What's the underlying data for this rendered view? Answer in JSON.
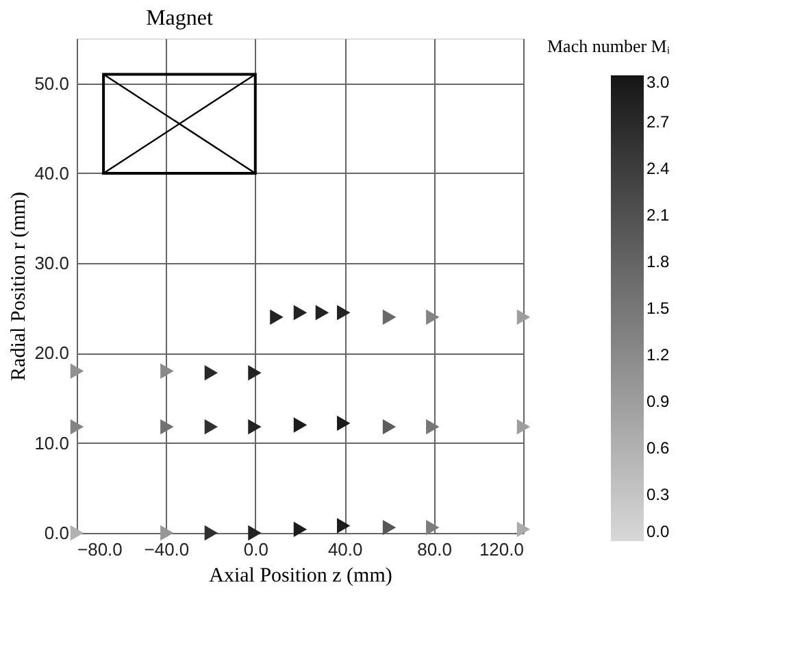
{
  "chart_data": {
    "type": "scatter",
    "xlabel": "Axial Position   z (mm)",
    "ylabel": "Radial Position   r (mm)",
    "clabel": "Mach number Mᵢ",
    "annotations": [
      "Magnet"
    ],
    "series": [
      {
        "x": [
          9.4,
          20,
          29.8,
          39.4,
          59.9,
          79.3,
          120
        ],
        "values": [
          24,
          24.5,
          24.5,
          24.5,
          24,
          24,
          24
        ],
        "cvalues": [
          2.8,
          2.8,
          2.8,
          2.8,
          1.7,
          1.3,
          0.9
        ],
        "colors": [
          "#232323",
          "#232323",
          "#232323",
          "#232323",
          "#6a6a6a",
          "#848484",
          "#9e9e9e"
        ]
      },
      {
        "x": [
          -80,
          -39.7,
          -19.9,
          -0.4
        ],
        "values": [
          18,
          18,
          17.8,
          17.8
        ],
        "cvalues": [
          1.1,
          1.2,
          2.7,
          2.8
        ],
        "colors": [
          "#919191",
          "#8a8a8a",
          "#292929",
          "#232323"
        ]
      },
      {
        "x": [
          -80,
          -39.7,
          -19.9,
          -0.4,
          20,
          39.4,
          59.9,
          79.3,
          120
        ],
        "values": [
          11.8,
          11.8,
          11.8,
          11.8,
          12,
          12.2,
          11.8,
          11.8,
          11.8
        ],
        "cvalues": [
          1.3,
          1.6,
          2.6,
          2.8,
          2.9,
          2.9,
          1.9,
          1.5,
          0.9
        ],
        "colors": [
          "#848484",
          "#717171",
          "#303030",
          "#232323",
          "#1c1c1c",
          "#1c1c1c",
          "#5d5d5d",
          "#777777",
          "#9e9e9e"
        ]
      },
      {
        "x": [
          -80,
          -39.7,
          -19.9,
          -0.4,
          20,
          39.4,
          59.9,
          79.3,
          120
        ],
        "values": [
          0,
          0,
          0,
          0,
          0.4,
          0.8,
          0.6,
          0.6,
          0.4
        ],
        "cvalues": [
          0.6,
          1.0,
          2.6,
          2.8,
          2.9,
          2.9,
          2.0,
          1.4,
          0.7
        ],
        "colors": [
          "#b1b1b1",
          "#979797",
          "#303030",
          "#232323",
          "#1c1c1c",
          "#1c1c1c",
          "#575757",
          "#7d7d7d",
          "#ababab"
        ]
      }
    ],
    "marker": "triangle",
    "xlim": [
      -80,
      120
    ],
    "ylim": [
      0,
      55
    ],
    "xticks": [
      {
        "value": -80,
        "label": "−80.0"
      },
      {
        "value": -40,
        "label": "−40.0"
      },
      {
        "value": 0,
        "label": "0.0"
      },
      {
        "value": 40,
        "label": "40.0"
      },
      {
        "value": 80,
        "label": "80.0"
      },
      {
        "value": 120,
        "label": "120.0"
      }
    ],
    "yticks": [
      {
        "value": 0,
        "label": "0.0"
      },
      {
        "value": 10,
        "label": "10.0"
      },
      {
        "value": 20,
        "label": "20.0"
      },
      {
        "value": 30,
        "label": "30.0"
      },
      {
        "value": 40,
        "label": "40.0"
      },
      {
        "value": 50,
        "label": "50.0"
      }
    ],
    "clim": [
      0,
      3
    ],
    "cticks": [
      {
        "value": 0,
        "label": "0.0"
      },
      {
        "value": 0.3,
        "label": "0.3"
      },
      {
        "value": 0.6,
        "label": "0.6"
      },
      {
        "value": 0.9,
        "label": "0.9"
      },
      {
        "value": 1.2,
        "label": "1.2"
      },
      {
        "value": 1.5,
        "label": "1.5"
      },
      {
        "value": 1.8,
        "label": "1.8"
      },
      {
        "value": 2.1,
        "label": "2.1"
      },
      {
        "value": 2.4,
        "label": "2.4"
      },
      {
        "value": 2.7,
        "label": "2.7"
      },
      {
        "value": 3,
        "label": "3.0"
      }
    ],
    "grid": true
  }
}
